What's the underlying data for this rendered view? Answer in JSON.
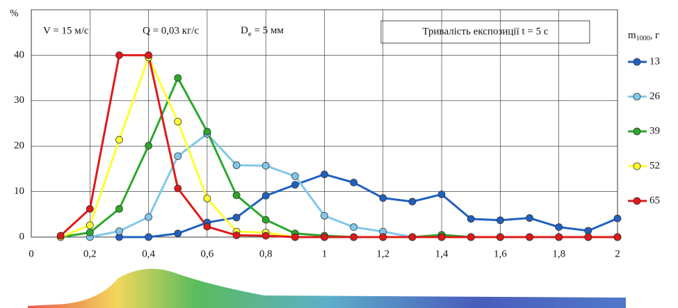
{
  "chart_data": {
    "type": "line",
    "y_label": "%",
    "annotations": [
      "V = 15 м/с",
      "Q = 0,03 кг/с"
    ],
    "diameter_label": {
      "text": "D",
      "subscript": "e",
      "suffix": " = 5 мм"
    },
    "exposure_label": "Тривалість експозиції t = 5 с",
    "legend_title": {
      "text": "m",
      "subscript": "1000",
      "suffix": ", г"
    },
    "x": [
      0.1,
      0.2,
      0.3,
      0.4,
      0.5,
      0.6,
      0.7,
      0.8,
      0.9,
      1.0,
      1.1,
      1.2,
      1.3,
      1.4,
      1.5,
      1.6,
      1.7,
      1.8,
      1.9,
      2.0
    ],
    "series": [
      {
        "name": "13",
        "color": "#2060c0",
        "values": [
          null,
          null,
          0,
          0,
          0.8,
          3.2,
          4.3,
          9.1,
          11.5,
          13.8,
          12,
          8.6,
          7.8,
          9.4,
          4,
          3.7,
          4.2,
          2.2,
          1.4,
          4.1
        ]
      },
      {
        "name": "26",
        "color": "#80c8ea",
        "values": [
          null,
          0,
          1.3,
          4.4,
          17.8,
          22.7,
          15.8,
          15.7,
          13.4,
          4.7,
          2.2,
          1.2,
          0,
          0,
          0,
          0,
          0,
          0,
          0,
          0
        ]
      },
      {
        "name": "39",
        "color": "#2aa82a",
        "values": [
          0,
          1,
          6.2,
          20.1,
          35,
          23.2,
          9.2,
          3.8,
          0.8,
          0.3,
          0,
          0,
          0,
          0.5,
          0,
          0,
          0,
          0,
          0,
          0
        ]
      },
      {
        "name": "52",
        "color": "#ffff30",
        "values": [
          0,
          2.6,
          21.4,
          39.5,
          25.4,
          8.5,
          1.2,
          1,
          0,
          0,
          0,
          0,
          0,
          0,
          0,
          0,
          0,
          0,
          0,
          0
        ]
      },
      {
        "name": "65",
        "color": "#e01818",
        "values": [
          0.3,
          6.2,
          40,
          40,
          10.7,
          2.3,
          0.4,
          0.3,
          0,
          0,
          0,
          0,
          0,
          0,
          0,
          0,
          0,
          0,
          0,
          0
        ]
      }
    ],
    "xlim": [
      0,
      2
    ],
    "ylim": [
      0,
      50
    ],
    "xticks": [
      0,
      {
        "value": 0.2,
        "label": "0,2"
      },
      {
        "value": 0.4,
        "label": "0,4"
      },
      {
        "value": 0.6,
        "label": "0,6"
      },
      {
        "value": 0.8,
        "label": "0,8"
      },
      1,
      {
        "value": 1.2,
        "label": "1,2"
      },
      {
        "value": 1.4,
        "label": "1,4"
      },
      {
        "value": 1.6,
        "label": "1,6"
      },
      {
        "value": 1.8,
        "label": "1,8"
      },
      2
    ],
    "yticks": [
      0,
      10,
      20,
      30,
      40
    ],
    "grid": true
  }
}
